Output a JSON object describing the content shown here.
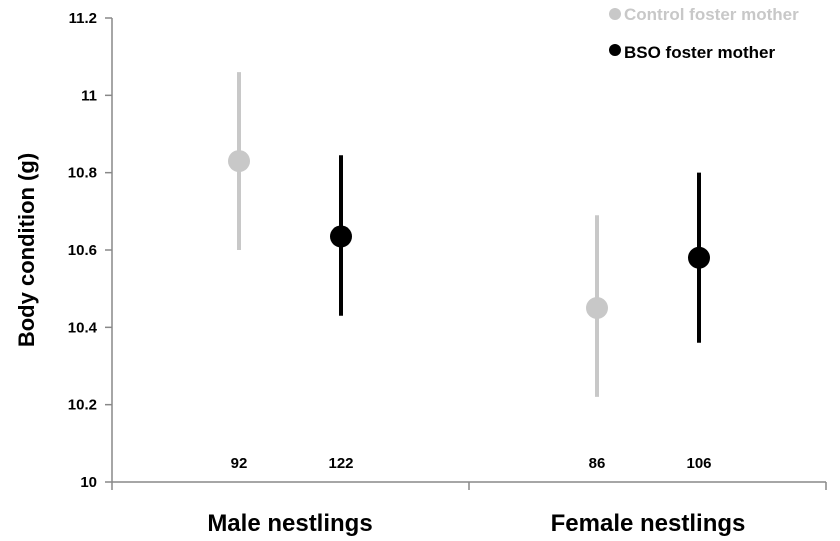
{
  "chart_data": {
    "type": "scatter",
    "ylabel": "Body condition (g)",
    "ylim": [
      10,
      11.2
    ],
    "yticks": [
      10,
      10.2,
      10.4,
      10.6,
      10.8,
      11,
      11.2
    ],
    "ytick_labels": [
      "10",
      "10.2",
      "10.4",
      "10.6",
      "10.8",
      "11",
      "11.2"
    ],
    "categories": [
      "Male nestlings",
      "Female nestlings"
    ],
    "series": [
      {
        "name": "Control foster mother",
        "color": "#c8c8c8",
        "values": [
          10.83,
          10.45
        ],
        "lower": [
          10.6,
          10.22
        ],
        "upper": [
          11.06,
          10.69
        ],
        "n": [
          "92",
          "86"
        ]
      },
      {
        "name": "BSO foster mother",
        "color": "#000000",
        "values": [
          10.635,
          10.58
        ],
        "lower": [
          10.43,
          10.36
        ],
        "upper": [
          10.845,
          10.8
        ],
        "n": [
          "122",
          "106"
        ]
      }
    ],
    "legend_position": "top-right",
    "grid": false
  }
}
